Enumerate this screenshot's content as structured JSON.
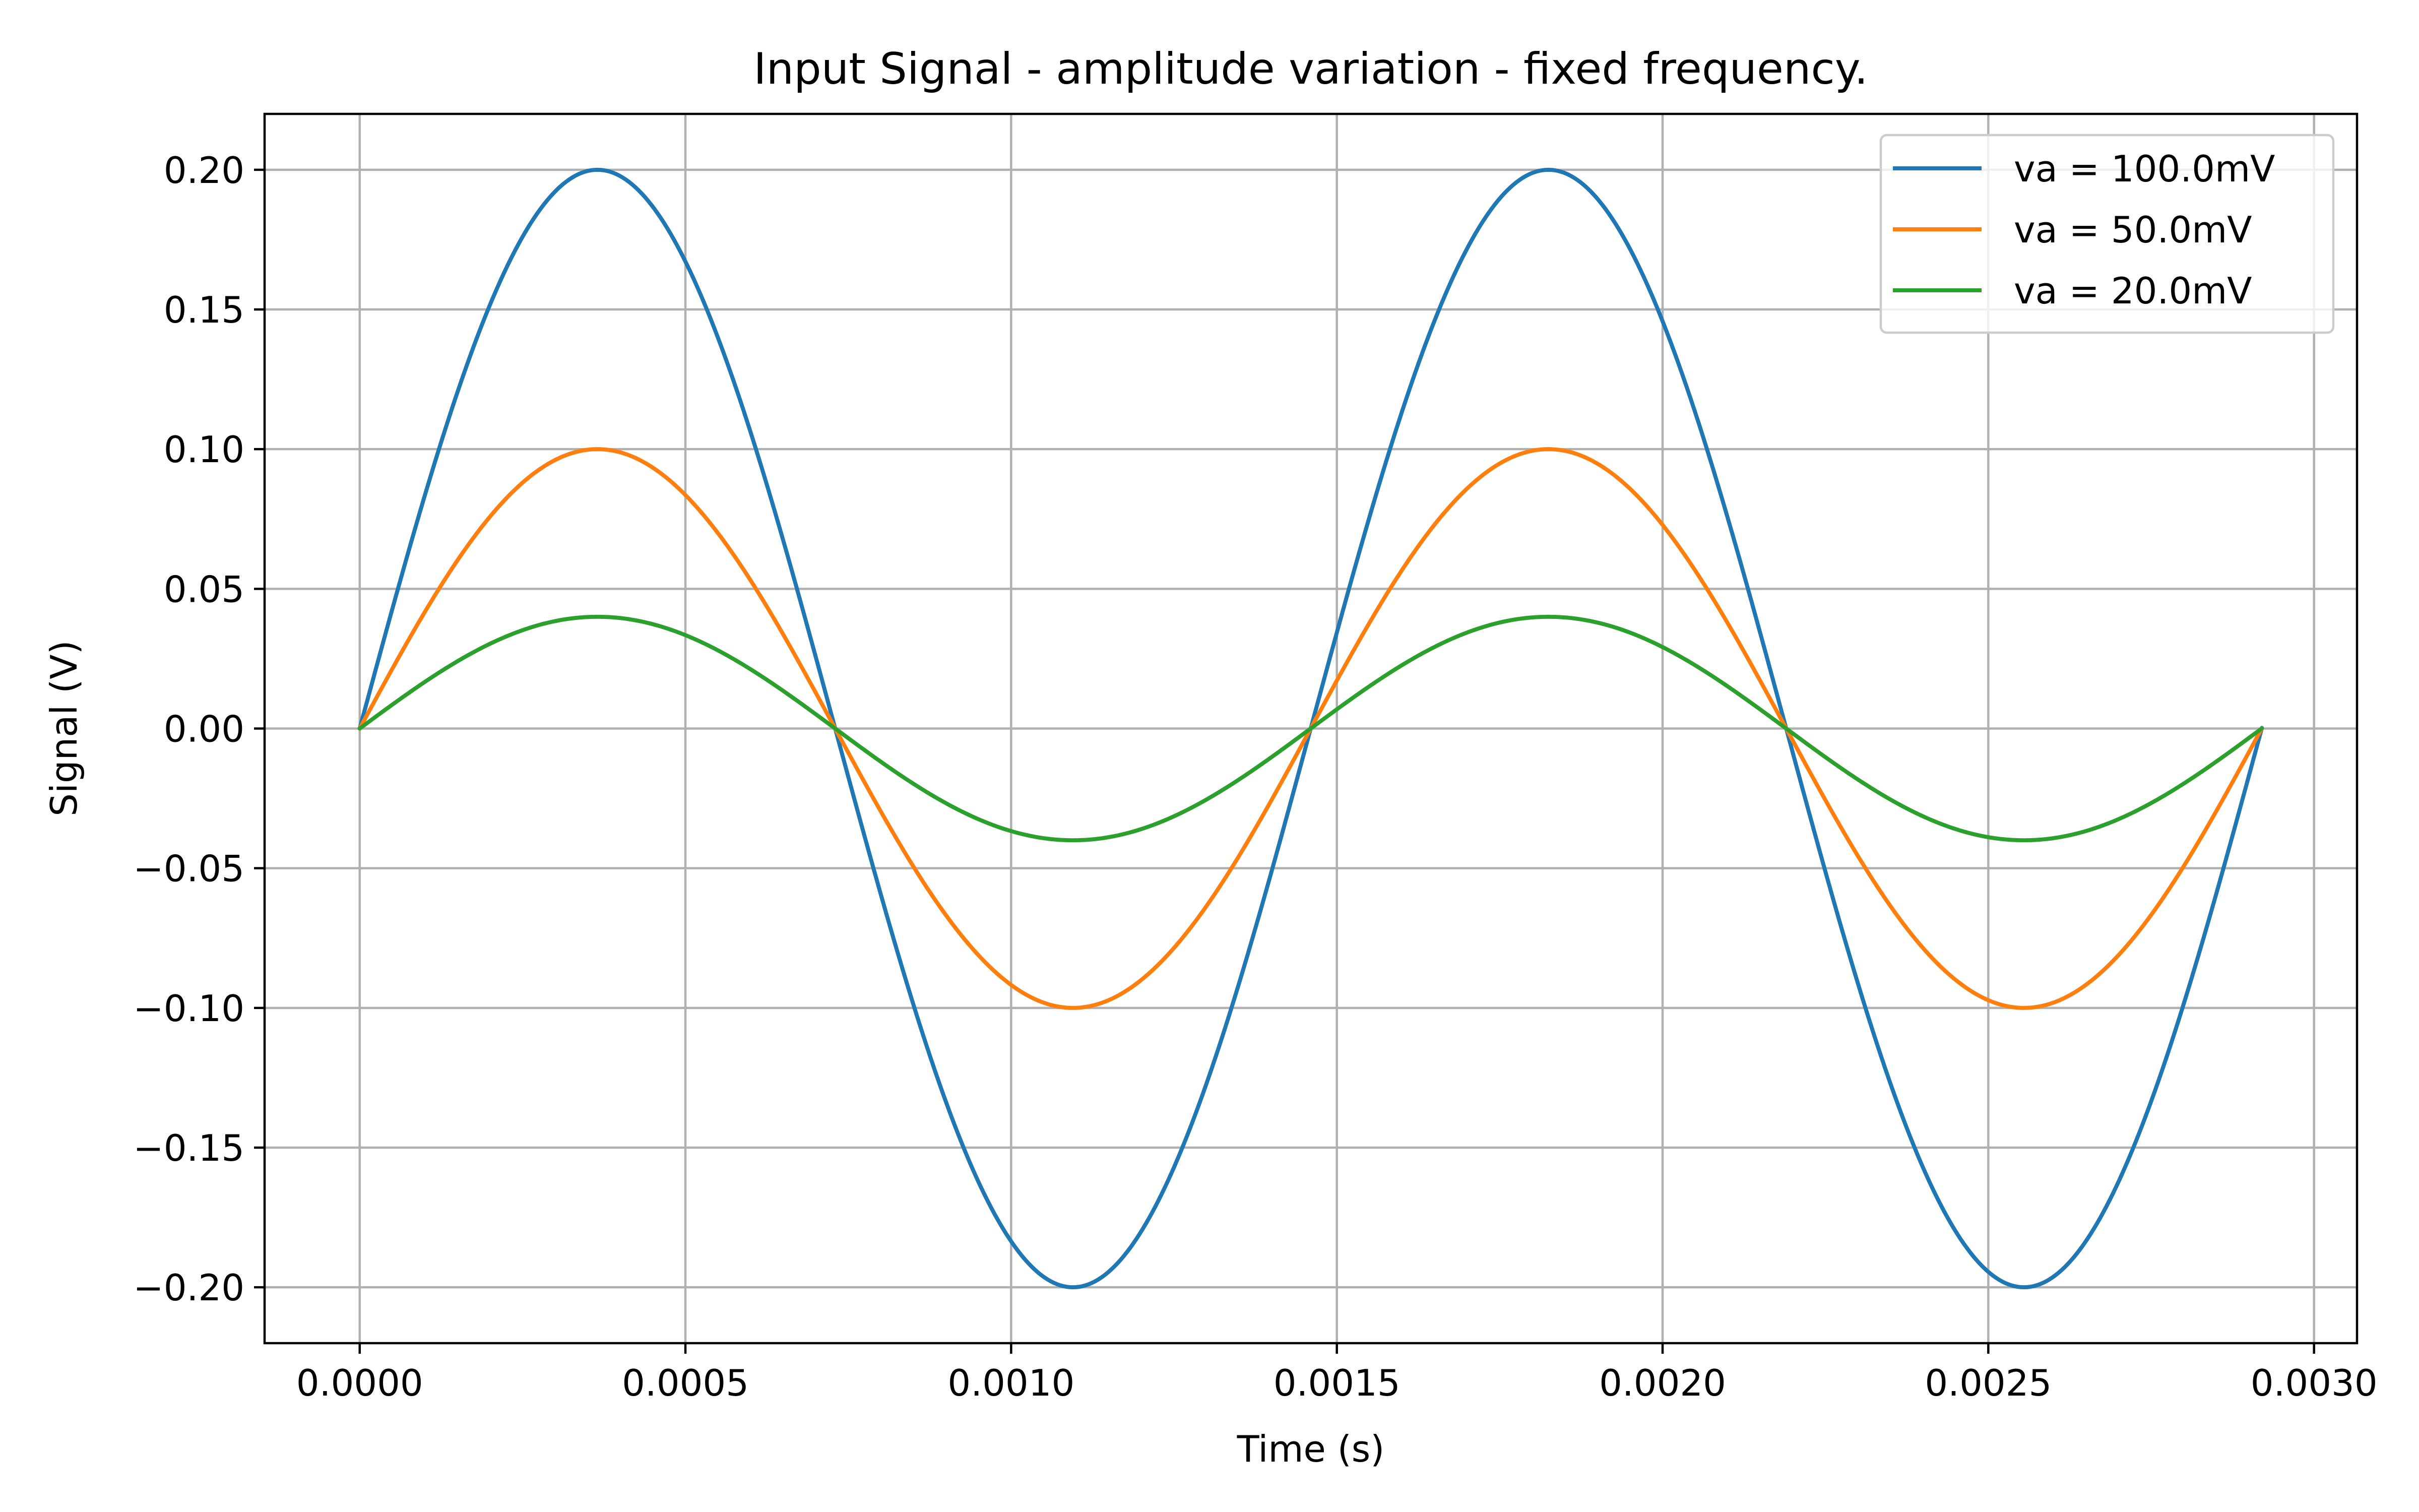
{
  "chart_data": {
    "type": "line",
    "title": "Input Signal - amplitude variation - fixed frequency.",
    "xlabel": "Time (s)",
    "ylabel": "Signal (V)",
    "xlim": [
      -0.000146,
      0.003066
    ],
    "ylim": [
      -0.22,
      0.22
    ],
    "xticks": [
      0.0,
      0.0005,
      0.001,
      0.0015,
      0.002,
      0.0025,
      0.003
    ],
    "xtick_labels": [
      "0.0000",
      "0.0005",
      "0.0010",
      "0.0015",
      "0.0020",
      "0.0025",
      "0.0030"
    ],
    "yticks": [
      0.2,
      0.15,
      0.1,
      0.05,
      0.0,
      -0.05,
      -0.1,
      -0.15,
      -0.2
    ],
    "ytick_labels": [
      "0.20",
      "0.15",
      "0.10",
      "0.05",
      "0.00",
      "−0.05",
      "−0.10",
      "−0.15",
      "−0.20"
    ],
    "grid": true,
    "legend_position": "top-right",
    "frequency_hz": 685,
    "x_range": [
      0.0,
      0.00292
    ],
    "series": [
      {
        "name": "va = 100.0mV",
        "peak_volts": 0.2,
        "color": "#1f77b4"
      },
      {
        "name": "va = 50.0mV",
        "peak_volts": 0.1,
        "color": "#ff7f0e"
      },
      {
        "name": "va = 20.0mV",
        "peak_volts": 0.04,
        "color": "#2ca02c"
      }
    ]
  }
}
